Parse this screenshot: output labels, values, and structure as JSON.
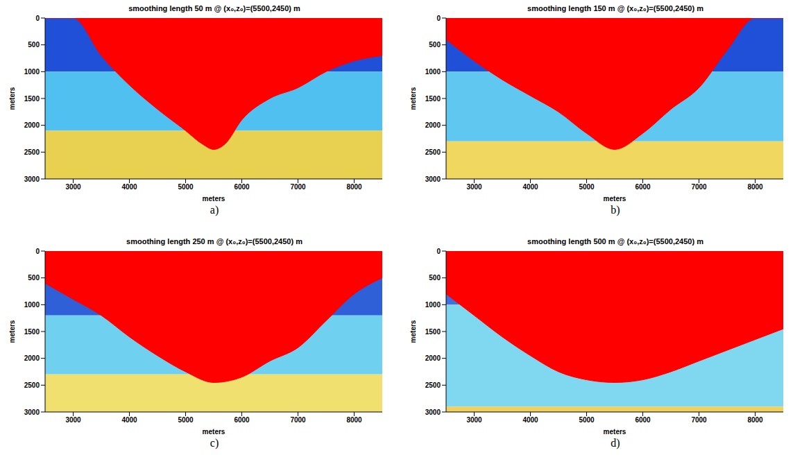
{
  "chart_data": [
    {
      "type": "area",
      "panel": "a)",
      "title": "smoothing length 50 m  @ (x₀,z₀)=(5500,2450) m",
      "x_label": "meters",
      "y_label": "meters",
      "xlim": [
        2500,
        8500
      ],
      "ylim": [
        0,
        3000
      ],
      "xticks": [
        3000,
        4000,
        5000,
        6000,
        7000,
        8000
      ],
      "yticks": [
        0,
        500,
        1000,
        1500,
        2000,
        2500,
        3000
      ],
      "bands": [
        {
          "z": [
            0,
            1000
          ],
          "color": "#2050d8"
        },
        {
          "z": [
            1000,
            2100
          ],
          "color": "#50c0f0"
        },
        {
          "z": [
            2100,
            3000
          ],
          "color": "#e8d050"
        }
      ],
      "x": [
        2500,
        3000,
        3500,
        4000,
        4500,
        5000,
        5300,
        5500,
        5700,
        6000,
        6500,
        7000,
        7500,
        8000,
        8500
      ],
      "values": [
        0,
        0,
        700,
        1250,
        1700,
        2100,
        2350,
        2450,
        2350,
        1900,
        1500,
        1300,
        1000,
        800,
        700
      ],
      "color": "#ff0000"
    },
    {
      "type": "area",
      "panel": "b)",
      "title": "smoothing length 150 m  @ (x₀,z₀)=(5500,2450) m",
      "x_label": "meters",
      "y_label": "meters",
      "xlim": [
        2500,
        8500
      ],
      "ylim": [
        0,
        3000
      ],
      "xticks": [
        3000,
        4000,
        5000,
        6000,
        7000,
        8000
      ],
      "yticks": [
        0,
        500,
        1000,
        1500,
        2000,
        2500,
        3000
      ],
      "bands": [
        {
          "z": [
            0,
            1000
          ],
          "color": "#2050d8"
        },
        {
          "z": [
            1000,
            2300
          ],
          "color": "#60c8f0"
        },
        {
          "z": [
            2300,
            3000
          ],
          "color": "#f0d860"
        }
      ],
      "x": [
        2500,
        3000,
        3500,
        4000,
        4500,
        5000,
        5500,
        6000,
        6500,
        7000,
        7500,
        8000,
        8500
      ],
      "values": [
        400,
        800,
        1150,
        1450,
        1750,
        2150,
        2450,
        2150,
        1700,
        1300,
        600,
        0,
        0
      ],
      "color": "#ff0000"
    },
    {
      "type": "area",
      "panel": "c)",
      "title": "smoothing length 250 m  @ (x₀,z₀)=(5500,2450) m",
      "x_label": "meters",
      "y_label": "meters",
      "xlim": [
        2500,
        8500
      ],
      "ylim": [
        0,
        3000
      ],
      "xticks": [
        3000,
        4000,
        5000,
        6000,
        7000,
        8000
      ],
      "yticks": [
        0,
        500,
        1000,
        1500,
        2000,
        2500,
        3000
      ],
      "bands": [
        {
          "z": [
            0,
            1200
          ],
          "color": "#3060d8"
        },
        {
          "z": [
            1200,
            2300
          ],
          "color": "#70d0f0"
        },
        {
          "z": [
            2300,
            3000
          ],
          "color": "#f0e070"
        }
      ],
      "x": [
        2500,
        3000,
        3500,
        4000,
        4500,
        5000,
        5500,
        6000,
        6500,
        7000,
        7500,
        8000,
        8500
      ],
      "values": [
        600,
        900,
        1200,
        1600,
        1950,
        2250,
        2450,
        2350,
        2050,
        1800,
        1300,
        800,
        500
      ],
      "color": "#ff0000"
    },
    {
      "type": "area",
      "panel": "d)",
      "title": "smoothing length 500 m  @ (x₀,z₀)=(5500,2450) m",
      "x_label": "meters",
      "y_label": "meters",
      "xlim": [
        2500,
        8500
      ],
      "ylim": [
        0,
        3000
      ],
      "xticks": [
        3000,
        4000,
        5000,
        6000,
        7000,
        8000
      ],
      "yticks": [
        0,
        500,
        1000,
        1500,
        2000,
        2500,
        3000
      ],
      "bands": [
        {
          "z": [
            0,
            1000
          ],
          "color": "#4070e0"
        },
        {
          "z": [
            1000,
            2900
          ],
          "color": "#80d8f0"
        },
        {
          "z": [
            2900,
            3000
          ],
          "color": "#f0d060"
        }
      ],
      "x": [
        2500,
        3000,
        3500,
        4000,
        4500,
        5000,
        5500,
        6000,
        6500,
        7000,
        7500,
        8000,
        8500
      ],
      "values": [
        800,
        1200,
        1600,
        1950,
        2250,
        2400,
        2450,
        2400,
        2250,
        2050,
        1850,
        1650,
        1450
      ],
      "color": "#ff0000"
    }
  ]
}
